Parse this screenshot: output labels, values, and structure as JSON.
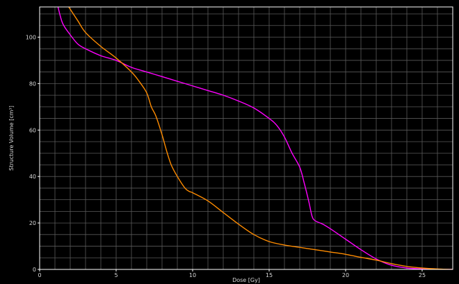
{
  "chart_data": {
    "type": "line",
    "xlabel": "Dose [Gy]",
    "ylabel": "Structure Volume [cm³]",
    "xlim": [
      0,
      27
    ],
    "ylim": [
      0,
      113
    ],
    "xticks": [
      0,
      5,
      10,
      15,
      20,
      25
    ],
    "yticks": [
      0,
      20,
      40,
      60,
      80,
      100
    ],
    "x_minor_step": 1,
    "y_minor_step": 5,
    "grid": true,
    "legend": "none",
    "colors": {
      "background": "#000000",
      "frame": "#ffffff",
      "grid": "#5a5a5a",
      "text": "#d8d8d8"
    },
    "series": [
      {
        "color": "#ff00ff",
        "x": [
          1.2,
          1.5,
          2.0,
          2.5,
          3.0,
          4.0,
          5.0,
          6.0,
          7.0,
          8.0,
          9.0,
          10.0,
          11.0,
          12.0,
          13.0,
          14.0,
          15.0,
          15.5,
          16.0,
          16.5,
          17.0,
          17.3,
          17.6,
          17.8,
          18.0,
          18.5,
          19.0,
          20.0,
          21.0,
          22.0,
          23.0,
          24.0,
          25.0,
          26.0,
          27.0
        ],
        "y": [
          113,
          106,
          101,
          97,
          95,
          92,
          90,
          87,
          85,
          83,
          81,
          79,
          77,
          75,
          72.5,
          69.5,
          65,
          62,
          57,
          50,
          44,
          37,
          29,
          23,
          21,
          19.5,
          17.5,
          13,
          8.5,
          4.5,
          1.8,
          0.6,
          0.2,
          0.05,
          0
        ]
      },
      {
        "color": "#ff8c00",
        "x": [
          1.9,
          2.5,
          3.0,
          4.0,
          5.0,
          6.0,
          6.5,
          7.0,
          7.3,
          7.6,
          8.0,
          8.3,
          8.6,
          9.0,
          9.5,
          9.8,
          10.0,
          11.0,
          12.0,
          13.0,
          14.0,
          15.0,
          16.0,
          17.0,
          18.0,
          19.0,
          20.0,
          21.0,
          22.0,
          23.0,
          24.0,
          25.0,
          26.0,
          27.0
        ],
        "y": [
          113,
          107,
          102,
          96,
          91,
          85,
          81,
          76,
          70,
          66,
          58,
          51,
          45,
          40,
          35,
          33.5,
          33,
          29.5,
          24.5,
          19.5,
          15,
          12,
          10.5,
          9.5,
          8.5,
          7.5,
          6.5,
          5.2,
          4,
          2.5,
          1.3,
          0.6,
          0.2,
          0
        ]
      }
    ]
  }
}
